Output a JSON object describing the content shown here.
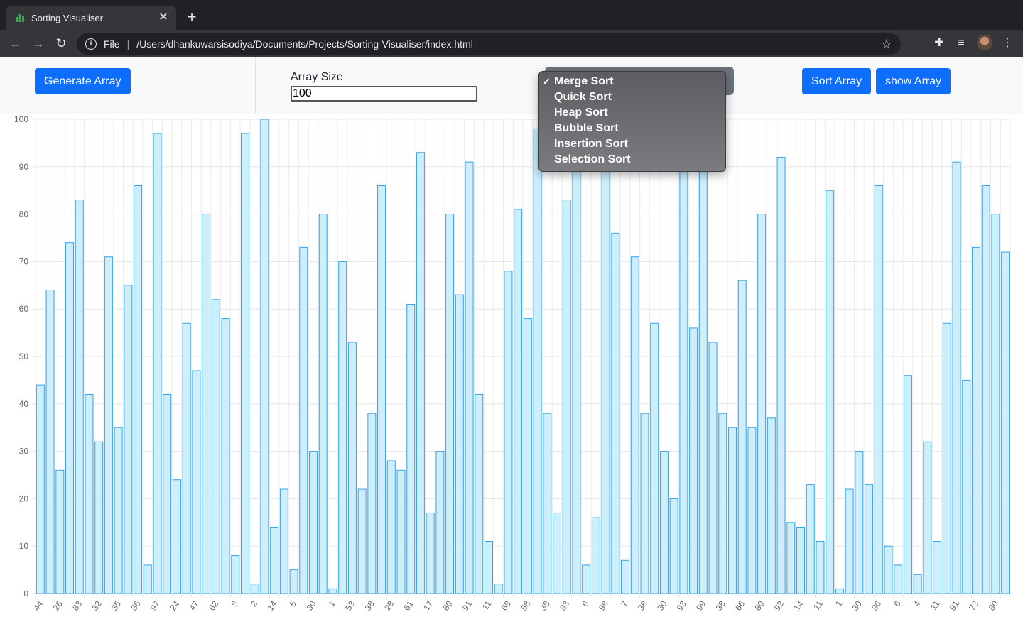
{
  "browser": {
    "tab_title": "Sorting Visualiser",
    "scheme_label": "File",
    "url": "/Users/dhankuwarsisodiya/Documents/Projects/Sorting-Visualiser/index.html"
  },
  "controls": {
    "generate_label": "Generate Array",
    "array_size_label": "Array Size",
    "array_size_value": "100",
    "algorithm_options": [
      "Merge Sort",
      "Quick Sort",
      "Heap Sort",
      "Bubble Sort",
      "Insertion Sort",
      "Selection Sort"
    ],
    "selected_algorithm": "Merge Sort",
    "sort_label": "Sort Array",
    "show_label": "show Array"
  },
  "colors": {
    "button_blue": "#0d6efd",
    "bar_fill": "#cdeefb",
    "bar_border": "#36a2eb"
  },
  "chart_data": {
    "type": "bar",
    "values": [
      44,
      64,
      26,
      74,
      83,
      42,
      32,
      71,
      35,
      65,
      86,
      6,
      97,
      42,
      24,
      57,
      47,
      80,
      62,
      58,
      8,
      97,
      2,
      100,
      14,
      22,
      5,
      73,
      30,
      80,
      1,
      70,
      53,
      22,
      38,
      86,
      28,
      26,
      61,
      93,
      17,
      30,
      80,
      63,
      91,
      42,
      11,
      2,
      68,
      81,
      58,
      98,
      38,
      17,
      83,
      90,
      6,
      16,
      98,
      76,
      7,
      71,
      38,
      57,
      30,
      20,
      93,
      56,
      99,
      53,
      38,
      35,
      66,
      35,
      80,
      37,
      92,
      15,
      14,
      23,
      11,
      85,
      1,
      22,
      30,
      23,
      86,
      10,
      6,
      46,
      4,
      32,
      11,
      57,
      91,
      45,
      73,
      86,
      80,
      72
    ],
    "ylim": [
      0,
      100
    ],
    "yticks": [
      0,
      10,
      20,
      30,
      40,
      50,
      60,
      70,
      80,
      90,
      100
    ],
    "grid": true
  }
}
